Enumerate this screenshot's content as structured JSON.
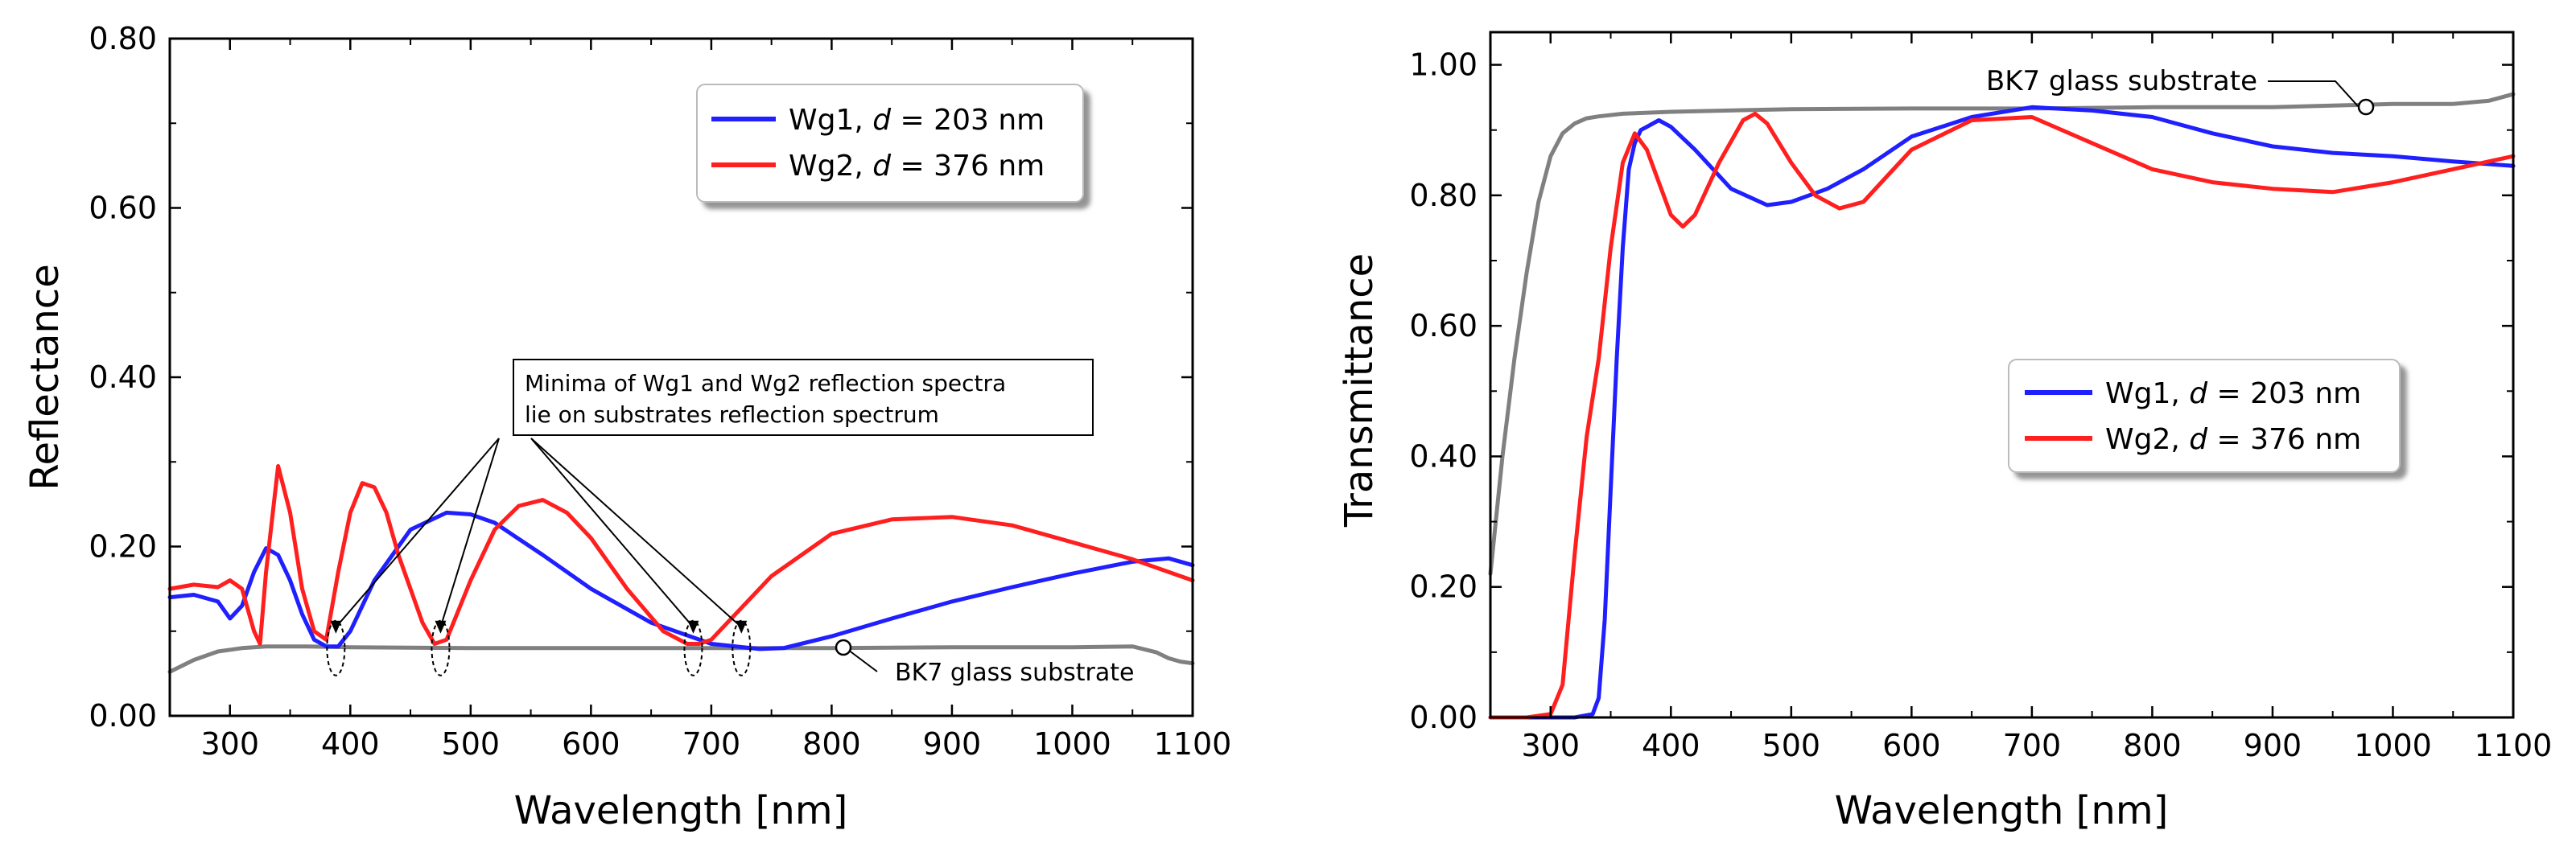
{
  "chart_data": [
    {
      "type": "line",
      "ylabel": "Reflectance",
      "xlabel": "Wavelength [nm]",
      "xlim": [
        250,
        1100
      ],
      "ylim": [
        0,
        0.8
      ],
      "xticks": [
        "300",
        "400",
        "500",
        "600",
        "700",
        "800",
        "900",
        "1000",
        "1100"
      ],
      "yticks": [
        "0.00",
        "0.20",
        "0.40",
        "0.60",
        "0.80"
      ],
      "legend_position": "top-right",
      "legend": [
        {
          "prefix": "Wg1, ",
          "var": "d",
          "suffix": " = 203 nm"
        },
        {
          "prefix": "Wg2, ",
          "var": "d",
          "suffix": " = 376 nm"
        }
      ],
      "annotation": {
        "lines": [
          "Minima of Wg1 and Wg2 reflection spectra",
          "lie on substrates reflection spectrum"
        ],
        "targets_nm": [
          388,
          475,
          685,
          725
        ]
      },
      "substrate_label": "BK7 glass substrate",
      "series": [
        {
          "name": "Wg1, d = 203 nm",
          "color": "#1f1fff",
          "x": [
            250,
            270,
            290,
            300,
            310,
            320,
            330,
            340,
            350,
            360,
            370,
            380,
            390,
            400,
            420,
            450,
            480,
            500,
            520,
            560,
            600,
            650,
            700,
            740,
            760,
            800,
            850,
            900,
            950,
            1000,
            1050,
            1080,
            1100
          ],
          "y": [
            0.14,
            0.143,
            0.135,
            0.115,
            0.13,
            0.17,
            0.198,
            0.19,
            0.16,
            0.12,
            0.09,
            0.082,
            0.082,
            0.1,
            0.16,
            0.22,
            0.24,
            0.238,
            0.228,
            0.19,
            0.15,
            0.11,
            0.085,
            0.079,
            0.08,
            0.094,
            0.115,
            0.135,
            0.152,
            0.168,
            0.182,
            0.186,
            0.178
          ]
        },
        {
          "name": "Wg2, d = 376 nm",
          "color": "#ff1f1f",
          "x": [
            250,
            270,
            290,
            300,
            310,
            320,
            325,
            330,
            340,
            350,
            360,
            370,
            380,
            390,
            400,
            410,
            420,
            430,
            440,
            460,
            470,
            480,
            500,
            520,
            540,
            560,
            580,
            600,
            630,
            660,
            680,
            690,
            700,
            720,
            750,
            800,
            850,
            900,
            950,
            1000,
            1050,
            1080,
            1100
          ],
          "y": [
            0.15,
            0.155,
            0.152,
            0.16,
            0.15,
            0.1,
            0.085,
            0.17,
            0.295,
            0.24,
            0.15,
            0.1,
            0.09,
            0.17,
            0.24,
            0.275,
            0.27,
            0.24,
            0.19,
            0.11,
            0.085,
            0.09,
            0.16,
            0.22,
            0.248,
            0.255,
            0.24,
            0.21,
            0.15,
            0.1,
            0.085,
            0.085,
            0.09,
            0.12,
            0.165,
            0.215,
            0.232,
            0.235,
            0.225,
            0.205,
            0.185,
            0.17,
            0.16
          ]
        },
        {
          "name": "BK7 glass substrate",
          "color": "#808080",
          "x": [
            250,
            270,
            290,
            310,
            330,
            360,
            400,
            500,
            600,
            700,
            800,
            900,
            1000,
            1050,
            1070,
            1080,
            1090,
            1100
          ],
          "y": [
            0.052,
            0.066,
            0.076,
            0.08,
            0.082,
            0.082,
            0.081,
            0.08,
            0.08,
            0.08,
            0.08,
            0.081,
            0.081,
            0.082,
            0.075,
            0.068,
            0.064,
            0.062
          ]
        }
      ]
    },
    {
      "type": "line",
      "ylabel": "Transmittance",
      "xlabel": "Wavelength [nm]",
      "xlim": [
        250,
        1100
      ],
      "ylim": [
        0,
        1.05
      ],
      "xticks": [
        "300",
        "400",
        "500",
        "600",
        "700",
        "800",
        "900",
        "1000",
        "1100"
      ],
      "yticks": [
        "0.00",
        "0.20",
        "0.40",
        "0.60",
        "0.80",
        "1.00"
      ],
      "legend_position": "center-right",
      "legend": [
        {
          "prefix": "Wg1, ",
          "var": "d",
          "suffix": " = 203 nm"
        },
        {
          "prefix": "Wg2, ",
          "var": "d",
          "suffix": " = 376 nm"
        }
      ],
      "substrate_label": "BK7 glass substrate",
      "series": [
        {
          "name": "Wg1, d = 203 nm",
          "color": "#1f1fff",
          "x": [
            250,
            320,
            335,
            340,
            345,
            350,
            355,
            360,
            365,
            370,
            375,
            380,
            390,
            400,
            420,
            450,
            480,
            500,
            530,
            560,
            600,
            650,
            700,
            750,
            800,
            850,
            900,
            950,
            1000,
            1050,
            1100
          ],
          "y": [
            0,
            0,
            0.005,
            0.03,
            0.15,
            0.35,
            0.55,
            0.72,
            0.84,
            0.88,
            0.9,
            0.905,
            0.915,
            0.905,
            0.87,
            0.81,
            0.785,
            0.79,
            0.81,
            0.84,
            0.89,
            0.92,
            0.935,
            0.93,
            0.92,
            0.895,
            0.875,
            0.865,
            0.86,
            0.852,
            0.845
          ]
        },
        {
          "name": "Wg2, d = 376 nm",
          "color": "#ff1f1f",
          "x": [
            250,
            280,
            300,
            310,
            320,
            330,
            340,
            350,
            360,
            370,
            380,
            390,
            400,
            410,
            420,
            440,
            460,
            470,
            480,
            500,
            520,
            540,
            560,
            580,
            600,
            650,
            700,
            750,
            800,
            850,
            900,
            950,
            1000,
            1050,
            1100
          ],
          "y": [
            0,
            0,
            0.005,
            0.05,
            0.25,
            0.43,
            0.55,
            0.72,
            0.85,
            0.895,
            0.87,
            0.82,
            0.77,
            0.752,
            0.77,
            0.85,
            0.915,
            0.925,
            0.91,
            0.85,
            0.8,
            0.78,
            0.79,
            0.83,
            0.87,
            0.915,
            0.92,
            0.88,
            0.84,
            0.82,
            0.81,
            0.805,
            0.82,
            0.84,
            0.86
          ]
        },
        {
          "name": "BK7 glass substrate",
          "color": "#808080",
          "x": [
            250,
            260,
            270,
            280,
            290,
            300,
            310,
            320,
            330,
            340,
            360,
            400,
            500,
            600,
            700,
            800,
            900,
            1000,
            1050,
            1080,
            1100
          ],
          "y": [
            0.22,
            0.4,
            0.55,
            0.68,
            0.79,
            0.86,
            0.895,
            0.91,
            0.918,
            0.921,
            0.925,
            0.928,
            0.932,
            0.933,
            0.933,
            0.935,
            0.935,
            0.94,
            0.94,
            0.945,
            0.955
          ]
        }
      ]
    }
  ]
}
